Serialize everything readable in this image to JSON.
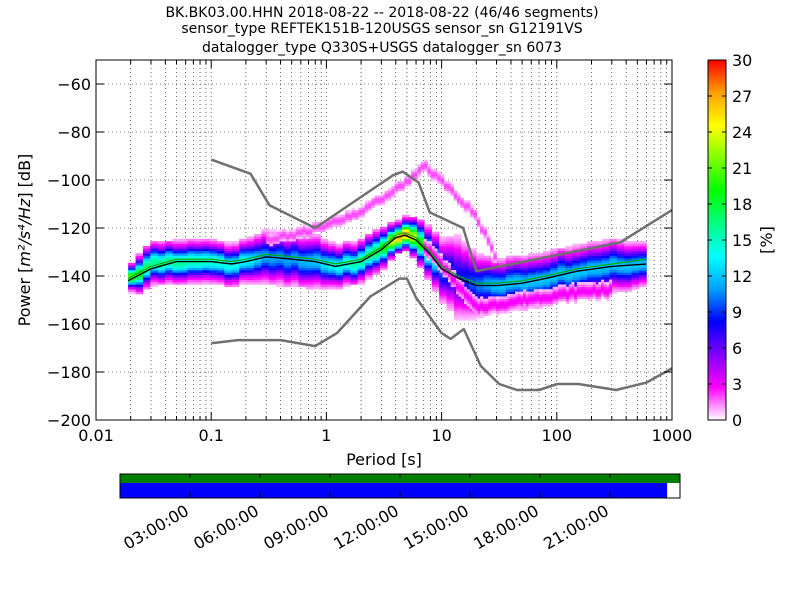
{
  "header": {
    "line1": "BK.BK03.00.HHN   2018-08-22 -- 2018-08-22  (46/46 segments)",
    "line2": "sensor_type REFTEK151B-120USGS sensor_sn G12191VS",
    "line3": "datalogger_type Q330S+USGS datalogger_sn 6073"
  },
  "chart_data": {
    "type": "heatmap",
    "subtype": "probabilistic power spectral density",
    "xlabel": "Period [s]",
    "ylabel": "Power [m²/s⁴/Hz] [dB]",
    "ylabel_parts": {
      "prefix": "Power [",
      "unit": "m²/s⁴/Hz",
      "suffix": "] [dB]"
    },
    "x_scale": "log",
    "xlim": [
      0.01,
      1000
    ],
    "ylim": [
      -200,
      -50
    ],
    "x_ticks": [
      0.01,
      0.1,
      1,
      10,
      100,
      1000
    ],
    "x_tick_labels": [
      "0.01",
      "0.1",
      "1",
      "10",
      "100",
      "1000"
    ],
    "y_ticks": [
      -200,
      -180,
      -160,
      -140,
      -120,
      -100,
      -80,
      -60
    ],
    "y_tick_labels": [
      "−200",
      "−180",
      "−160",
      "−140",
      "−120",
      "−100",
      "−80",
      "−60"
    ],
    "grid": true,
    "colorbar": {
      "label": "[%]",
      "range": [
        0,
        30
      ],
      "ticks": [
        0,
        3,
        6,
        9,
        12,
        15,
        18,
        21,
        24,
        27,
        30
      ],
      "tick_labels": [
        "0",
        "3",
        "6",
        "9",
        "12",
        "15",
        "18",
        "21",
        "24",
        "27",
        "30"
      ],
      "colormap": "pqlx",
      "color_stops": [
        "#ffffff",
        "#ff00ff",
        "#8000ff",
        "#0000ff",
        "#00a0ff",
        "#00ffff",
        "#00ff80",
        "#00ff00",
        "#80ff00",
        "#ffff00",
        "#ffa000",
        "#ff0000"
      ]
    },
    "density": {
      "description": "distribution of PSD values (percent of segments) per period",
      "ridges": [
        {
          "x": [
            0.019,
            0.025,
            0.03,
            0.05,
            0.1,
            0.15,
            0.2,
            0.3,
            0.5,
            0.8,
            1.2,
            2.0,
            3.0,
            4.0,
            4.8,
            6.0,
            8.0,
            10,
            14,
            20,
            30,
            50,
            80,
            150,
            300,
            600
          ],
          "y": [
            -142,
            -138,
            -135,
            -134,
            -134,
            -135,
            -134,
            -132,
            -133,
            -134,
            -136,
            -134,
            -129,
            -124,
            -122,
            -125,
            -131,
            -137,
            -141,
            -144,
            -144,
            -143,
            -141,
            -138,
            -136,
            -135
          ],
          "spread": [
            2,
            4,
            4,
            4,
            4,
            4,
            4,
            5,
            5,
            5,
            4,
            4,
            4,
            3,
            3,
            4,
            5,
            6,
            8,
            6,
            5,
            5,
            5,
            5,
            5,
            4
          ],
          "peak": [
            22,
            18,
            16,
            16,
            15,
            14,
            14,
            11,
            11,
            12,
            14,
            16,
            18,
            26,
            28,
            22,
            16,
            10,
            8,
            10,
            12,
            12,
            12,
            12,
            12,
            12
          ]
        },
        {
          "x": [
            0.3,
            0.6,
            1.0,
            2.0,
            3.0,
            5.0,
            7.0,
            10,
            14,
            18,
            25,
            30
          ],
          "y": [
            -125,
            -122,
            -119,
            -113,
            -108,
            -101,
            -94,
            -100,
            -108,
            -112,
            -124,
            -134
          ],
          "spread": [
            1.5,
            1.5,
            1.5,
            1.5,
            1.5,
            1.5,
            1.5,
            1.5,
            1.5,
            1.5,
            1.5,
            1.5
          ],
          "peak": [
            2,
            2,
            2,
            2,
            2,
            2,
            2,
            2,
            2,
            2,
            2,
            2
          ]
        },
        {
          "x": [
            7.0,
            10,
            15,
            20,
            30,
            50,
            100,
            200,
            300
          ],
          "y": [
            -127,
            -135,
            -146,
            -153,
            -152,
            -150,
            -148,
            -146,
            -146
          ],
          "spread": [
            2,
            2,
            2,
            2,
            2,
            2,
            2,
            2,
            2
          ],
          "peak": [
            3,
            3,
            3,
            3,
            3,
            3,
            3,
            3,
            3
          ]
        }
      ]
    },
    "series": [
      {
        "role": "mean",
        "color": "#000000",
        "x": [
          0.019,
          0.025,
          0.03,
          0.05,
          0.1,
          0.15,
          0.2,
          0.3,
          0.5,
          0.8,
          1.2,
          2.0,
          3.0,
          4.0,
          4.8,
          6.0,
          8.0,
          10,
          14,
          20,
          30,
          50,
          80,
          150,
          300,
          600
        ],
        "y": [
          -142,
          -139,
          -137,
          -134,
          -134,
          -135,
          -134,
          -132,
          -133,
          -134,
          -136,
          -134,
          -129,
          -124,
          -123,
          -125,
          -131,
          -137,
          -141,
          -144,
          -144,
          -143,
          -141,
          -138,
          -136,
          -135
        ]
      },
      {
        "role": "mode",
        "color": "#00aa00",
        "x": [
          0.019,
          0.025,
          0.03,
          0.05,
          0.1,
          0.15,
          0.2,
          0.3,
          0.5,
          0.8,
          1.2,
          2.0,
          3.0,
          4.0,
          4.8,
          6.0,
          8.0,
          10,
          14,
          20,
          30,
          50,
          80,
          150,
          300,
          600
        ],
        "y": [
          -141,
          -138,
          -136,
          -133,
          -133,
          -134,
          -133,
          -131,
          -132,
          -133,
          -135,
          -133,
          -128,
          -123,
          -122,
          -124,
          -130,
          -136,
          -140,
          -143,
          -143,
          -142,
          -140,
          -137,
          -135,
          -133
        ]
      },
      {
        "role": "NHNM",
        "color": "#707070",
        "x": [
          0.1,
          0.22,
          0.32,
          0.8,
          3.8,
          4.6,
          6.3,
          7.9,
          15.4,
          20,
          354.8,
          1000
        ],
        "y": [
          -91.5,
          -97.4,
          -110.5,
          -120,
          -98,
          -96.5,
          -101,
          -113.5,
          -120,
          -138,
          -126,
          -112.5
        ]
      },
      {
        "role": "NLNM",
        "color": "#707070",
        "x": [
          0.1,
          0.17,
          0.4,
          0.8,
          1.24,
          2.4,
          4.3,
          5.0,
          6.0,
          10.0,
          12.0,
          15.6,
          21.9,
          31.6,
          45,
          70,
          101,
          154,
          328,
          600,
          1000
        ],
        "y": [
          -168,
          -166.7,
          -166.7,
          -169.2,
          -163.7,
          -148.6,
          -141.1,
          -141.1,
          -149,
          -163.8,
          -166.2,
          -162.1,
          -177.5,
          -185,
          -187.5,
          -187.5,
          -185,
          -185,
          -187.5,
          -184.4,
          -178.5
        ]
      }
    ]
  },
  "timeline": {
    "tick_labels": [
      "03:00:00",
      "06:00:00",
      "09:00:00",
      "12:00:00",
      "15:00:00",
      "18:00:00",
      "21:00:00"
    ],
    "tick_hours": [
      3,
      6,
      9,
      12,
      15,
      18,
      21
    ],
    "span_hours": 24,
    "data_coverage_color": "#008000",
    "used_coverage_color": "#0000ff",
    "data_coverage_fraction": 1.0,
    "used_coverage_fraction": 0.977
  }
}
